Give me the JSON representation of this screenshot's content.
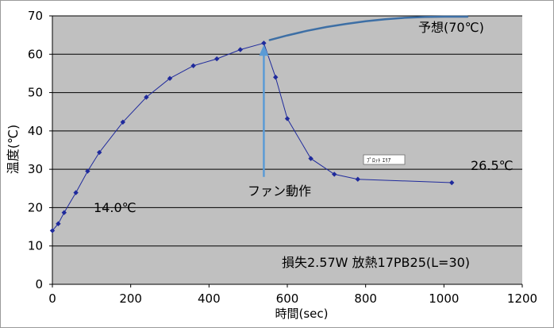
{
  "chart_data": {
    "type": "scatter",
    "xlabel": "時間(sec)",
    "ylabel": "温度(℃)",
    "xlim": [
      0,
      1200
    ],
    "ylim": [
      0,
      70
    ],
    "x_ticks": [
      0,
      200,
      400,
      600,
      800,
      1000,
      1200
    ],
    "y_ticks": [
      0,
      10,
      20,
      30,
      40,
      50,
      60,
      70
    ],
    "grid": "horizontal",
    "plot_background": "#c0c0c0",
    "series": [
      {
        "color": "#1f2a9c",
        "marker": "diamond",
        "x": [
          0,
          15,
          30,
          60,
          90,
          120,
          180,
          240,
          300,
          360,
          420,
          480,
          540,
          570,
          600,
          660,
          720,
          780,
          1020
        ],
        "y": [
          14.0,
          15.8,
          18.7,
          23.9,
          29.5,
          34.4,
          42.3,
          48.8,
          53.7,
          57.0,
          58.8,
          61.2,
          62.9,
          54.0,
          43.2,
          32.8,
          28.7,
          27.4,
          26.5
        ]
      },
      {
        "color": "#3d6fa5",
        "style": "projection-curve",
        "x": [
          555,
          600,
          650,
          700,
          750,
          800,
          850,
          900,
          950,
          1000,
          1060
        ],
        "y": [
          63.7,
          64.9,
          66.1,
          67.1,
          67.9,
          68.6,
          69.1,
          69.5,
          69.7,
          69.8,
          69.8
        ]
      }
    ],
    "annotations": {
      "forecast": "予想(70℃)",
      "fan": "ファン動作",
      "start_temp": "14.0℃",
      "end_temp": "26.5℃",
      "spec": "損失2.57W  放熱17PB25(L=30)",
      "tooltip": "ﾌﾟﾛｯﾄ ｴﾘｱ"
    },
    "arrow": {
      "x": 540,
      "y_from": 28,
      "y_to": 62.5,
      "color": "#5b9bd5"
    }
  }
}
